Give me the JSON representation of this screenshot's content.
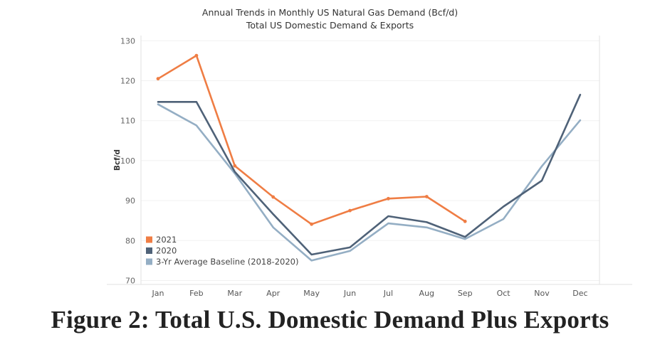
{
  "chart_data": {
    "type": "line",
    "title": "Annual Trends in Monthly US Natural Gas Demand (Bcf/d)",
    "subtitle": "Total US Domestic Demand & Exports",
    "xlabel": "",
    "ylabel": "Bcf/d",
    "categories": [
      "Jan",
      "Feb",
      "Mar",
      "Apr",
      "May",
      "Jun",
      "Jul",
      "Aug",
      "Sep",
      "Oct",
      "Nov",
      "Dec"
    ],
    "ylim": [
      70,
      130
    ],
    "yticks": [
      70,
      80,
      90,
      100,
      110,
      120,
      130
    ],
    "grid": true,
    "legend": "bottom-left",
    "series": [
      {
        "name": "2021",
        "color": "#ef7d44",
        "markers": true,
        "values": [
          120.5,
          126.3,
          98.7,
          90.9,
          84.1,
          87.5,
          90.5,
          91.0,
          84.8,
          null,
          null,
          null
        ]
      },
      {
        "name": "2020",
        "color": "#4f6278",
        "markers": false,
        "values": [
          114.7,
          114.7,
          97.2,
          86.6,
          76.5,
          78.3,
          86.1,
          84.6,
          80.9,
          88.5,
          95.0,
          116.5
        ]
      },
      {
        "name": "3-Yr Average Baseline (2018-2020)",
        "color": "#94aec4",
        "markers": false,
        "values": [
          114.1,
          108.8,
          96.8,
          83.3,
          75.0,
          77.4,
          84.3,
          83.3,
          80.4,
          85.4,
          98.6,
          110.1
        ]
      }
    ]
  },
  "caption": "Figure 2: Total U.S. Domestic Demand Plus Exports"
}
